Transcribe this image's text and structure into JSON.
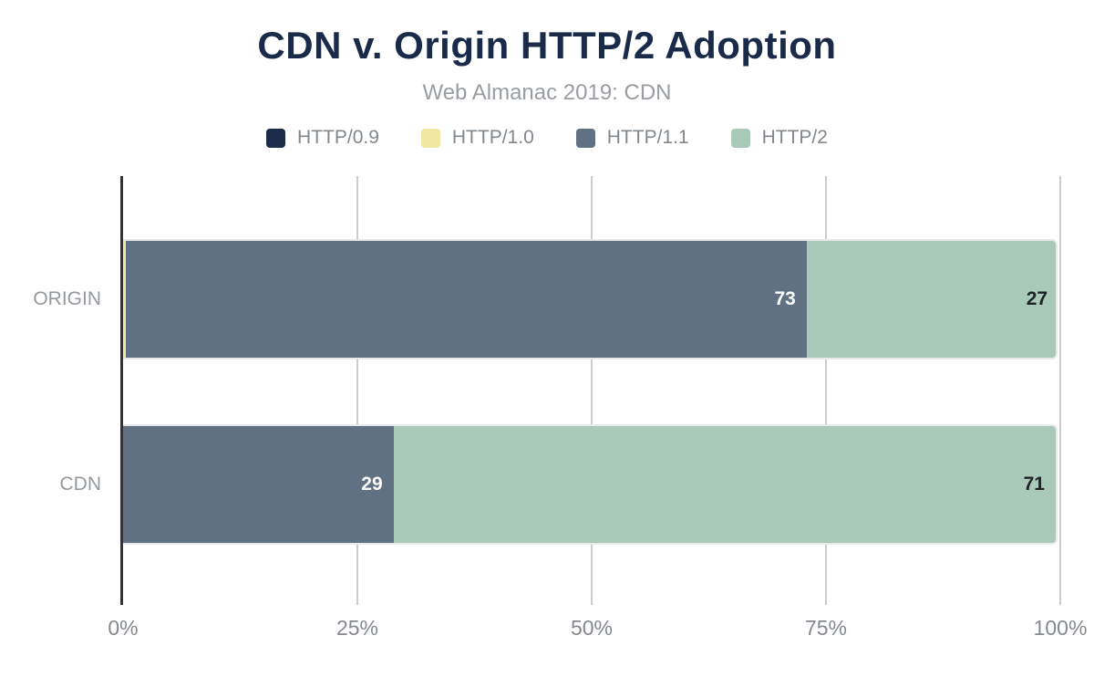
{
  "header": {
    "title": "CDN v. Origin HTTP/2 Adoption",
    "subtitle": "Web Almanac 2019: CDN"
  },
  "legend": [
    {
      "label": "HTTP/0.9",
      "color": "#1c2b4a"
    },
    {
      "label": "HTTP/1.0",
      "color": "#f3e6a2"
    },
    {
      "label": "HTTP/1.1",
      "color": "#5f7183"
    },
    {
      "label": "HTTP/2",
      "color": "#a9cab9"
    }
  ],
  "chart_data": {
    "type": "bar",
    "orientation": "horizontal",
    "stacked": true,
    "title": "CDN v. Origin HTTP/2 Adoption",
    "subtitle": "Web Almanac 2019: CDN",
    "categories": [
      "ORIGIN",
      "CDN"
    ],
    "series": [
      {
        "name": "HTTP/0.9",
        "color": "#1c2b4a",
        "values": [
          0,
          0
        ],
        "labels": [
          "",
          ""
        ]
      },
      {
        "name": "HTTP/1.0",
        "color": "#f3e6a2",
        "values": [
          0.3,
          0
        ],
        "labels": [
          "",
          ""
        ]
      },
      {
        "name": "HTTP/1.1",
        "color": "#5f7183",
        "values": [
          73,
          29
        ],
        "labels": [
          "73",
          "29"
        ],
        "label_color": "#ffffff"
      },
      {
        "name": "HTTP/2",
        "color": "#a9cab9",
        "values": [
          27,
          71
        ],
        "labels": [
          "27",
          "71"
        ],
        "label_color": "#1f2328"
      }
    ],
    "xlim": [
      0,
      100
    ],
    "x_ticks": [
      {
        "value": 0,
        "label": "0%"
      },
      {
        "value": 25,
        "label": "25%"
      },
      {
        "value": 50,
        "label": "50%"
      },
      {
        "value": 75,
        "label": "75%"
      },
      {
        "value": 100,
        "label": "100%"
      }
    ],
    "grid": true,
    "legend_position": "top",
    "xlabel": "",
    "ylabel": ""
  },
  "colors": {
    "title": "#1a2b49",
    "subtitle": "#999da2",
    "legend_text": "#82878c",
    "axis_text": "#85898e",
    "category_text": "#95999e",
    "gridline": "#cccccc",
    "axis_line": "#333333",
    "background": "#ffffff",
    "bar_border": "#e8e9eb"
  }
}
